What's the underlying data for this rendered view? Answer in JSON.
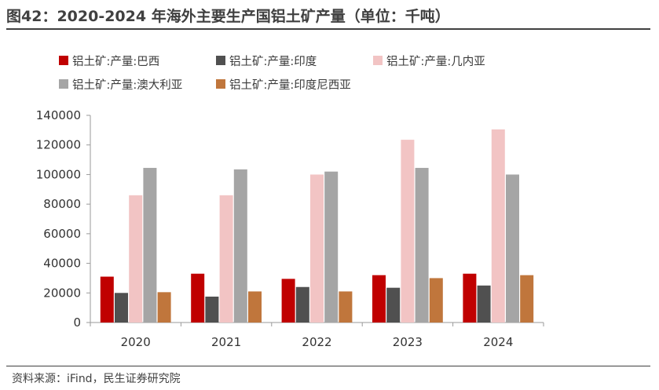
{
  "title": "图42：2020-2024 年海外主要生产国铝土矿产量（单位：千吨）",
  "source": "资料来源：iFind，民生证券研究院",
  "chart_data": {
    "type": "bar",
    "categories": [
      "2020",
      "2021",
      "2022",
      "2023",
      "2024"
    ],
    "series": [
      {
        "name": "铝土矿:产量:巴西",
        "color": "#C00000",
        "values": [
          31000,
          33000,
          29500,
          32000,
          33000
        ]
      },
      {
        "name": "铝土矿:产量:印度",
        "color": "#505050",
        "values": [
          20000,
          17500,
          24000,
          23500,
          25000
        ]
      },
      {
        "name": "铝土矿:产量:几内亚",
        "color": "#F2C4C4",
        "values": [
          86000,
          86000,
          100000,
          123500,
          130500
        ]
      },
      {
        "name": "铝土矿:产量:澳大利亚",
        "color": "#A5A5A5",
        "values": [
          104500,
          103500,
          102000,
          104500,
          100000
        ]
      },
      {
        "name": "铝土矿:产量:印度尼西亚",
        "color": "#C0763C",
        "values": [
          20500,
          21000,
          21000,
          30000,
          32000
        ]
      }
    ],
    "ylim": [
      0,
      140000
    ],
    "yticks": [
      "0",
      "20000",
      "40000",
      "60000",
      "80000",
      "100000",
      "120000",
      "140000"
    ],
    "legend_position": "top",
    "grid": false
  }
}
